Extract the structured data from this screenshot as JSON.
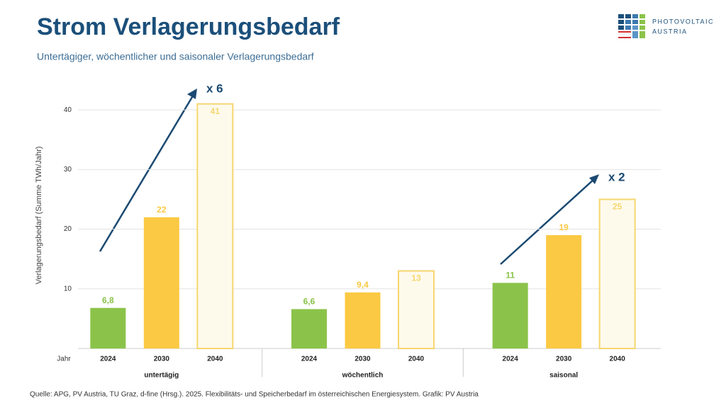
{
  "logo": [
    "PHOTOVOLTAIC",
    "AUSTRIA"
  ],
  "source": "Quelle: APG, PV Austria, TU Graz, d-fine (Hrsg.). 2025. Flexibilitäts- und Speicherbedarf im österreichischen Energiesystem. Grafik: PV Austria",
  "chart_data": {
    "type": "bar",
    "title": "Strom Verlagerungsbedarf",
    "subtitle": "Untertägiger, wöchentlicher und saisonaler Verlagerungsbedarf",
    "ylabel": "Verlagerungsbedarf (Summe TWh/Jahr)",
    "xlabel": "Jahr",
    "categories": [
      "untertägig",
      "wöchentlich",
      "saisonal"
    ],
    "series": [
      {
        "name": "2024",
        "color": "#8bc34a",
        "fill": "#8bc34a",
        "values": [
          6.8,
          6.6,
          11
        ],
        "value_labels": [
          "6,8",
          "6,6",
          "11"
        ]
      },
      {
        "name": "2030",
        "color": "#fbc943",
        "fill": "#fbc943",
        "values": [
          22,
          9.4,
          19
        ],
        "value_labels": [
          "22",
          "9,4",
          "19"
        ]
      },
      {
        "name": "2040",
        "color": "#f6d66f",
        "fill": "#fefaeb",
        "values": [
          41,
          13,
          25
        ],
        "value_labels": [
          "41",
          "13",
          "25"
        ]
      }
    ],
    "annotations": [
      "x 6",
      "x 2"
    ],
    "ylim": [
      0,
      45
    ],
    "yticks": [
      10,
      20,
      30,
      40
    ],
    "grid": true
  }
}
